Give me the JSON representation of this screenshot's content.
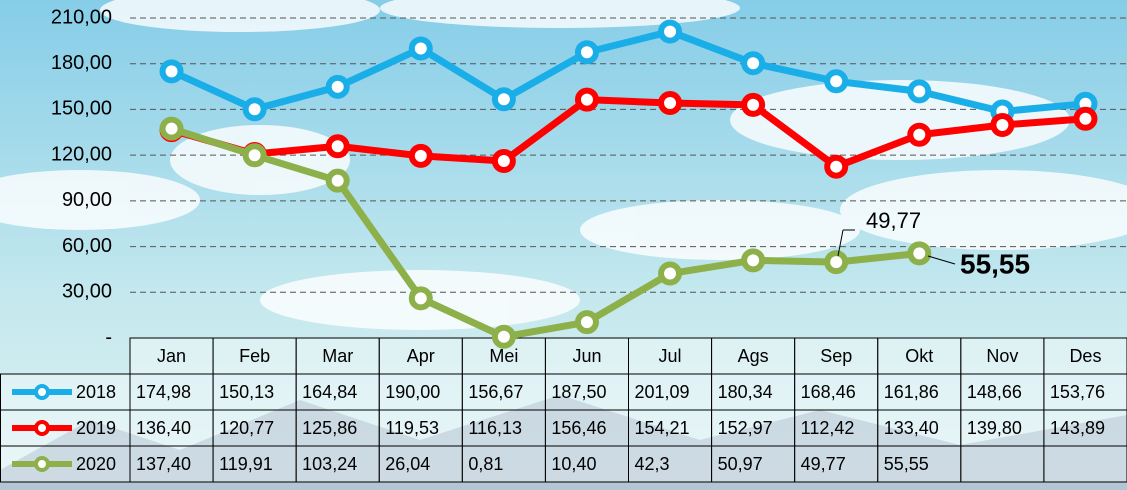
{
  "chart_data": {
    "type": "line",
    "categories": [
      "Jan",
      "Feb",
      "Mar",
      "Apr",
      "Mei",
      "Jun",
      "Jul",
      "Ags",
      "Sep",
      "Okt",
      "Nov",
      "Des"
    ],
    "series": [
      {
        "name": "2018",
        "color": "#1aaee8",
        "values": [
          174.98,
          150.13,
          164.84,
          190.0,
          156.67,
          187.5,
          201.09,
          180.34,
          168.46,
          161.86,
          148.66,
          153.76
        ],
        "value_labels": [
          "174,98",
          "150,13",
          "164,84",
          "190,00",
          "156,67",
          "187,50",
          "201,09",
          "180,34",
          "168,46",
          "161,86",
          "148,66",
          "153,76"
        ]
      },
      {
        "name": "2019",
        "color": "#ff0000",
        "values": [
          136.4,
          120.77,
          125.86,
          119.53,
          116.13,
          156.46,
          154.21,
          152.97,
          112.42,
          133.4,
          139.8,
          143.89
        ],
        "value_labels": [
          "136,40",
          "120,77",
          "125,86",
          "119,53",
          "116,13",
          "156,46",
          "154,21",
          "152,97",
          "112,42",
          "133,40",
          "139,80",
          "143,89"
        ]
      },
      {
        "name": "2020",
        "color": "#8db04a",
        "values": [
          137.4,
          119.91,
          103.24,
          26.04,
          0.81,
          10.4,
          42.3,
          50.97,
          49.77,
          55.55,
          null,
          null
        ],
        "value_labels": [
          "137,40",
          "119,91",
          "103,24",
          "26,04",
          "0,81",
          "10,40",
          "42,3",
          "50,97",
          "49,77",
          "55,55",
          null,
          null
        ]
      }
    ],
    "ylim": [
      0,
      210
    ],
    "yticks": [
      {
        "value": 0,
        "label": "-"
      },
      {
        "value": 30,
        "label": "30,00"
      },
      {
        "value": 60,
        "label": "60,00"
      },
      {
        "value": 90,
        "label": "90,00"
      },
      {
        "value": 120,
        "label": "120,00"
      },
      {
        "value": 150,
        "label": "150,00"
      },
      {
        "value": 180,
        "label": "180,00"
      },
      {
        "value": 210,
        "label": "210,00"
      }
    ],
    "grid": true
  }
}
